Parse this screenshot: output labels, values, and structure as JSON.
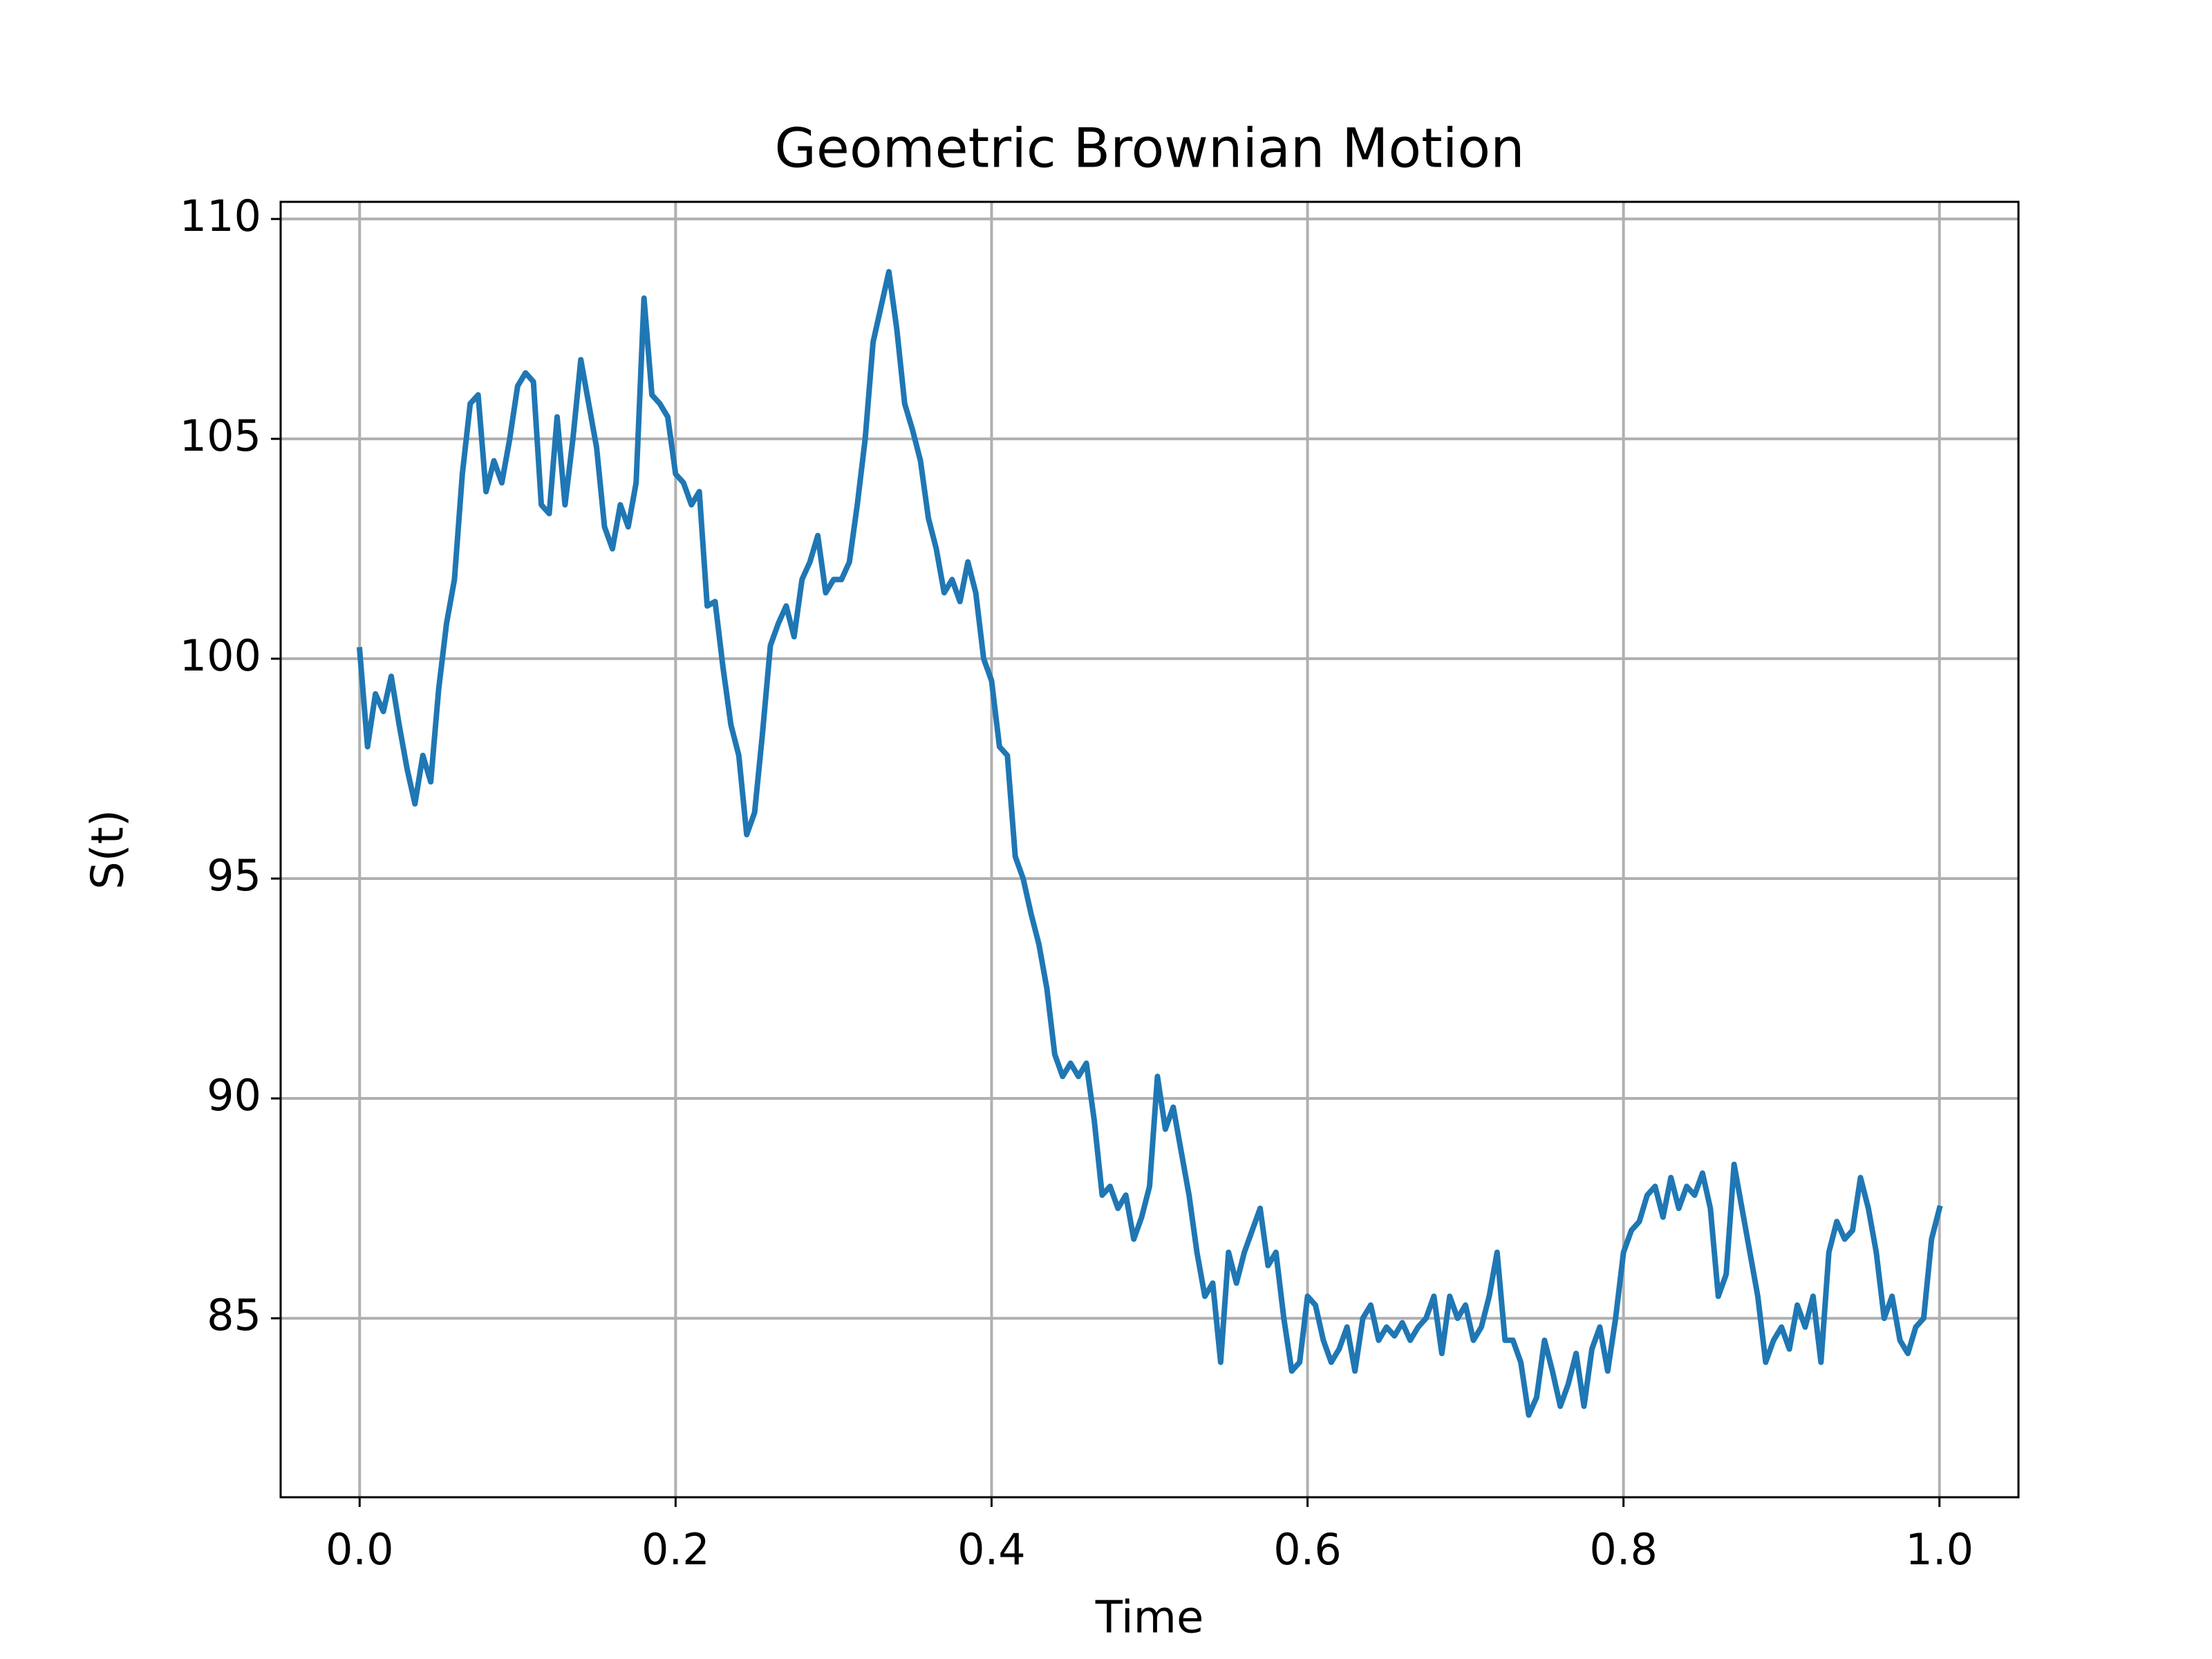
{
  "chart_data": {
    "type": "line",
    "title": "Geometric Brownian Motion",
    "xlabel": "Time",
    "ylabel": "S(t)",
    "color": "#1f77b4",
    "grid": true,
    "xlim": [
      -0.05,
      1.05
    ],
    "ylim": [
      80.93,
      110.39
    ],
    "xticks": [
      {
        "value": 0,
        "label": "0.0"
      },
      0.2,
      0.4,
      0.6,
      0.8,
      {
        "value": 1,
        "label": "1.0"
      }
    ],
    "yticks": [
      85,
      90,
      95,
      100,
      105,
      110
    ],
    "x": [
      0,
      0.005,
      0.01,
      0.015,
      0.02,
      0.025,
      0.03,
      0.035,
      0.04,
      0.045,
      0.05,
      0.055,
      0.06,
      0.065,
      0.07,
      0.075,
      0.08,
      0.085,
      0.09,
      0.095,
      0.1,
      0.105,
      0.11,
      0.115,
      0.12,
      0.125,
      0.13,
      0.135,
      0.14,
      0.145,
      0.15,
      0.155,
      0.16,
      0.165,
      0.17,
      0.175,
      0.18,
      0.185,
      0.19,
      0.195,
      0.2,
      0.205,
      0.21,
      0.215,
      0.22,
      0.225,
      0.23,
      0.235,
      0.24,
      0.245,
      0.25,
      0.255,
      0.26,
      0.265,
      0.27,
      0.275,
      0.28,
      0.285,
      0.29,
      0.295,
      0.3,
      0.305,
      0.31,
      0.315,
      0.32,
      0.325,
      0.33,
      0.335,
      0.34,
      0.345,
      0.35,
      0.355,
      0.36,
      0.365,
      0.37,
      0.375,
      0.38,
      0.385,
      0.39,
      0.395,
      0.4,
      0.405,
      0.41,
      0.415,
      0.42,
      0.425,
      0.43,
      0.435,
      0.44,
      0.445,
      0.45,
      0.455,
      0.46,
      0.465,
      0.47,
      0.475,
      0.48,
      0.485,
      0.49,
      0.495,
      0.5,
      0.505,
      0.51,
      0.515,
      0.52,
      0.525,
      0.53,
      0.535,
      0.54,
      0.545,
      0.55,
      0.555,
      0.56,
      0.565,
      0.57,
      0.575,
      0.58,
      0.585,
      0.59,
      0.595,
      0.6,
      0.605,
      0.61,
      0.615,
      0.62,
      0.625,
      0.63,
      0.635,
      0.64,
      0.645,
      0.65,
      0.655,
      0.66,
      0.665,
      0.67,
      0.675,
      0.68,
      0.685,
      0.69,
      0.695,
      0.7,
      0.705,
      0.71,
      0.715,
      0.72,
      0.725,
      0.73,
      0.735,
      0.74,
      0.745,
      0.75,
      0.755,
      0.76,
      0.765,
      0.77,
      0.775,
      0.78,
      0.785,
      0.79,
      0.795,
      0.8,
      0.805,
      0.81,
      0.815,
      0.82,
      0.825,
      0.83,
      0.835,
      0.84,
      0.845,
      0.85,
      0.855,
      0.86,
      0.865,
      0.87,
      0.875,
      0.88,
      0.885,
      0.89,
      0.895,
      0.9,
      0.905,
      0.91,
      0.915,
      0.92,
      0.925,
      0.93,
      0.935,
      0.94,
      0.945,
      0.95,
      0.955,
      0.96,
      0.965,
      0.97,
      0.975,
      0.98,
      0.985,
      0.99,
      0.995,
      1
    ],
    "values": [
      100.2,
      98.0,
      99.2,
      98.8,
      99.6,
      98.5,
      97.5,
      96.7,
      97.8,
      97.2,
      99.3,
      100.8,
      101.8,
      104.2,
      105.8,
      106.0,
      103.8,
      104.5,
      104.0,
      105.0,
      106.2,
      106.5,
      106.3,
      103.5,
      103.3,
      105.5,
      103.5,
      105.0,
      106.8,
      105.8,
      104.8,
      103.0,
      102.5,
      103.5,
      103.0,
      104.0,
      108.2,
      106.0,
      105.8,
      105.5,
      104.2,
      104.0,
      103.5,
      103.8,
      101.2,
      101.3,
      99.8,
      98.5,
      97.8,
      96.0,
      96.5,
      98.3,
      100.3,
      100.8,
      101.2,
      100.5,
      101.8,
      102.2,
      102.8,
      101.5,
      101.8,
      101.8,
      102.2,
      103.5,
      105.0,
      107.2,
      108.0,
      108.8,
      107.5,
      105.8,
      105.2,
      104.5,
      103.2,
      102.5,
      101.5,
      101.8,
      101.3,
      102.2,
      101.5,
      100.0,
      99.5,
      98.0,
      97.8,
      95.5,
      95.0,
      94.2,
      93.5,
      92.5,
      91.0,
      90.5,
      90.8,
      90.5,
      90.8,
      89.5,
      87.8,
      88.0,
      87.5,
      87.8,
      86.8,
      87.3,
      88.0,
      90.5,
      89.3,
      89.8,
      88.8,
      87.8,
      86.5,
      85.5,
      85.8,
      84.0,
      86.5,
      85.8,
      86.5,
      87.0,
      87.5,
      86.2,
      86.5,
      85.0,
      83.8,
      84.0,
      85.5,
      85.3,
      84.5,
      84.0,
      84.3,
      84.8,
      83.8,
      85.0,
      85.3,
      84.5,
      84.8,
      84.6,
      84.9,
      84.5,
      84.8,
      85.0,
      85.5,
      84.2,
      85.5,
      85.0,
      85.3,
      84.5,
      84.8,
      85.5,
      86.5,
      84.5,
      84.5,
      84.0,
      82.8,
      83.2,
      84.5,
      83.8,
      83.0,
      83.5,
      84.2,
      83.0,
      84.3,
      84.8,
      83.8,
      85.0,
      86.5,
      87.0,
      87.2,
      87.8,
      88.0,
      87.3,
      88.2,
      87.5,
      88.0,
      87.8,
      88.3,
      87.5,
      85.5,
      86.0,
      88.5,
      87.5,
      86.5,
      85.5,
      84.0,
      84.5,
      84.8,
      84.3,
      85.3,
      84.8,
      85.5,
      84.0,
      86.5,
      87.2,
      86.8,
      87.0,
      88.2,
      87.5,
      86.5,
      85.0,
      85.5,
      84.5,
      84.2,
      84.8,
      85.0,
      86.8,
      87.5
    ]
  }
}
